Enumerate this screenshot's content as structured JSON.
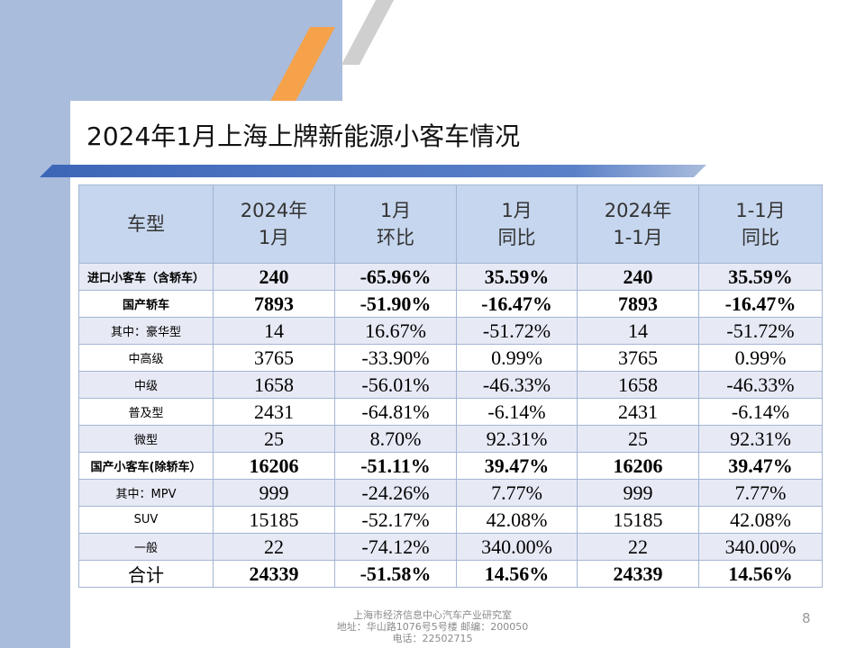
{
  "title": "2024年1月上海上牌新能源小客车情况",
  "table": {
    "headers": [
      {
        "line1": "车型",
        "line2": ""
      },
      {
        "line1": "2024年",
        "line2": "1月"
      },
      {
        "line1": "1月",
        "line2": "环比"
      },
      {
        "line1": "1月",
        "line2": "同比"
      },
      {
        "line1": "2024年",
        "line2": "1-1月"
      },
      {
        "line1": "1-1月",
        "line2": "同比"
      }
    ],
    "rows": [
      [
        "进口小客车（含轿车）",
        "240",
        "-65.96%",
        "35.59%",
        "240",
        "35.59%"
      ],
      [
        "国产轿车",
        "7893",
        "-51.90%",
        "-16.47%",
        "7893",
        "-16.47%"
      ],
      [
        "其中：豪华型",
        "14",
        "16.67%",
        "-51.72%",
        "14",
        "-51.72%"
      ],
      [
        "中高级",
        "3765",
        "-33.90%",
        "0.99%",
        "3765",
        "0.99%"
      ],
      [
        "中级",
        "1658",
        "-56.01%",
        "-46.33%",
        "1658",
        "-46.33%"
      ],
      [
        "普及型",
        "2431",
        "-64.81%",
        "-6.14%",
        "2431",
        "-6.14%"
      ],
      [
        "微型",
        "25",
        "8.70%",
        "92.31%",
        "25",
        "92.31%"
      ],
      [
        "国产小客车(除轿车）",
        "16206",
        "-51.11%",
        "39.47%",
        "16206",
        "39.47%"
      ],
      [
        "其中：MPV",
        "999",
        "-24.26%",
        "7.77%",
        "999",
        "7.77%"
      ],
      [
        "SUV",
        "15185",
        "-52.17%",
        "42.08%",
        "15185",
        "42.08%"
      ],
      [
        "一般",
        "22",
        "-74.12%",
        "340.00%",
        "22",
        "340.00%"
      ],
      [
        "合计",
        "24339",
        "-51.58%",
        "14.56%",
        "24339",
        "14.56%"
      ]
    ]
  },
  "footer": {
    "line1": "上海市经济信息中心汽车产业研究室",
    "line2": "地址：华山路1076号5号楼    邮编：200050",
    "line3": "电话：22502715"
  },
  "page_number": "8",
  "colors": {
    "accent_blue": "#4a72c2",
    "band_blue": "#a9bcdc",
    "header_fill": "#c6d6ee",
    "row_fill": "#e7eaf5",
    "stripe_orange": "#f5a24a"
  }
}
